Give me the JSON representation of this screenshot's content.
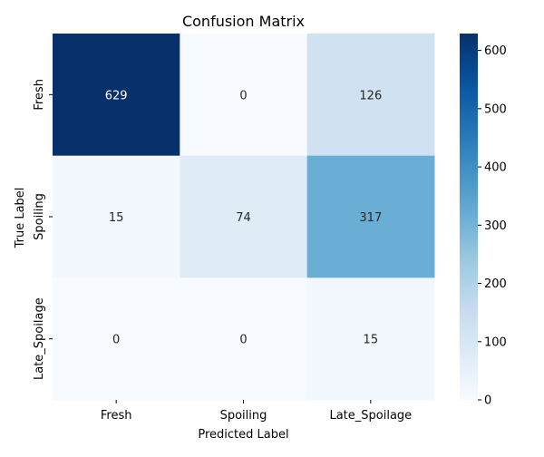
{
  "chart_data": {
    "type": "heatmap",
    "title": "Confusion Matrix",
    "xlabel": "Predicted Label",
    "ylabel": "True Label",
    "x_categories": [
      "Fresh",
      "Spoiling",
      "Late_Spoilage"
    ],
    "y_categories": [
      "Fresh",
      "Spoiling",
      "Late_Spoilage"
    ],
    "values": [
      [
        629,
        0,
        126
      ],
      [
        15,
        74,
        317
      ],
      [
        0,
        0,
        15
      ]
    ],
    "colormap": "Blues",
    "color_range": [
      0,
      629
    ],
    "colorbar_ticks": [
      0,
      100,
      200,
      300,
      400,
      500,
      600
    ],
    "colorbar_tick_labels": [
      "0",
      "100",
      "200",
      "300",
      "400",
      "500",
      "600"
    ],
    "annotations": true
  }
}
